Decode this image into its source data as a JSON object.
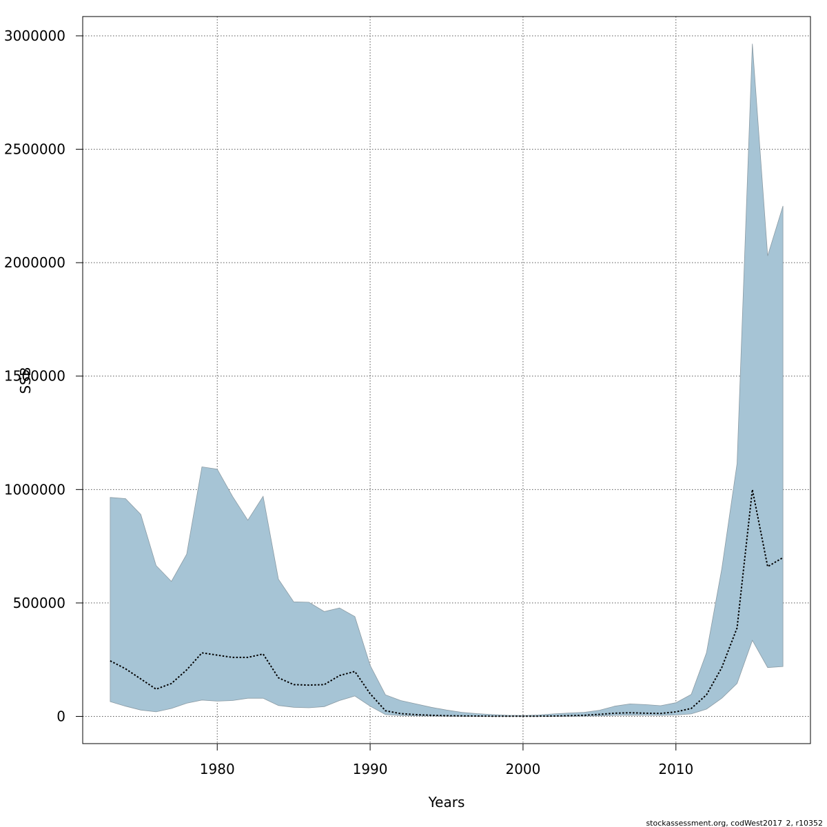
{
  "chart_data": {
    "type": "line",
    "xlabel": "Years",
    "ylabel": "SSB",
    "xlim": [
      1971.2,
      2018.8
    ],
    "ylim": [
      -120000,
      3085000
    ],
    "x_ticks": [
      1980,
      1990,
      2000,
      2010
    ],
    "y_ticks": [
      0,
      500000,
      1000000,
      1500000,
      2000000,
      2500000,
      3000000
    ],
    "grid": true,
    "band_color": "#a6c4d5",
    "band_edge_color": "#8a9aa3",
    "line_color": "#000000",
    "series": [
      {
        "x": [
          1973,
          1974,
          1975,
          1976,
          1977,
          1978,
          1979,
          1980,
          1981,
          1982,
          1983,
          1984,
          1985,
          1986,
          1987,
          1988,
          1989,
          1990,
          1991,
          1992,
          1993,
          1994,
          1995,
          1996,
          1997,
          1998,
          1999,
          2000,
          2001,
          2002,
          2003,
          2004,
          2005,
          2006,
          2007,
          2008,
          2009,
          2010,
          2011,
          2012,
          2013,
          2014,
          2015,
          2016,
          2017
        ],
        "estimate": [
          245000,
          210000,
          165000,
          120000,
          145000,
          205000,
          280000,
          270000,
          260000,
          260000,
          275000,
          170000,
          140000,
          138000,
          140000,
          180000,
          198000,
          100000,
          25000,
          12000,
          8000,
          5000,
          3000,
          2000,
          1500,
          1000,
          800,
          800,
          1000,
          1500,
          3000,
          5000,
          9000,
          14000,
          16000,
          14000,
          13000,
          20000,
          35000,
          95000,
          215000,
          390000,
          1000000,
          660000,
          700000
        ],
        "upper": [
          965000,
          960000,
          890000,
          665000,
          595000,
          715000,
          1100000,
          1090000,
          970000,
          865000,
          970000,
          605000,
          505000,
          503000,
          462000,
          478000,
          440000,
          225000,
          95000,
          70000,
          55000,
          40000,
          28000,
          18000,
          12000,
          8000,
          5000,
          4000,
          6000,
          11000,
          15000,
          18000,
          27000,
          45000,
          55000,
          52000,
          47000,
          60000,
          97000,
          280000,
          650000,
          1115000,
          2965000,
          2030000,
          2250000
        ],
        "lower": [
          65000,
          45000,
          28000,
          20000,
          35000,
          58000,
          72000,
          67000,
          70000,
          80000,
          80000,
          48000,
          40000,
          38000,
          43000,
          70000,
          90000,
          45000,
          8000,
          4000,
          2500,
          1500,
          1000,
          600,
          400,
          300,
          250,
          250,
          300,
          400,
          700,
          1200,
          2500,
          4500,
          5500,
          5000,
          4500,
          6000,
          11000,
          32000,
          80000,
          145000,
          335000,
          215000,
          220000
        ]
      }
    ]
  },
  "footer": "stockassessment.org, codWest2017_2, r10352"
}
